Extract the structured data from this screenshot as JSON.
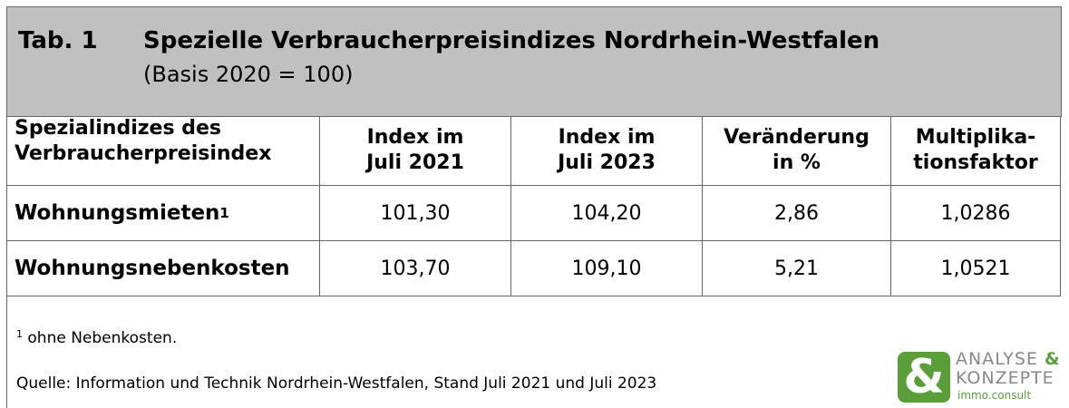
{
  "title": {
    "label": "Tab. 1",
    "text": "Spezielle Verbraucherpreisindizes Nordrhein-Westfalen",
    "subtitle": "(Basis 2020 = 100)"
  },
  "table": {
    "header": [
      [
        "Spezialindizes des",
        "Verbraucherpreisindex"
      ],
      [
        "Index im",
        "Juli 2021"
      ],
      [
        "Index im",
        "Juli 2023"
      ],
      [
        "Veränderung",
        "in %"
      ],
      [
        "Multiplika-",
        "tionsfaktor"
      ]
    ],
    "rows": [
      {
        "name": "Wohnungsmieten",
        "note": "1",
        "cells": [
          "101,30",
          "104,20",
          "2,86",
          "1,0286"
        ]
      },
      {
        "name": "Wohnungsnebenkosten",
        "cells": [
          "103,70",
          "109,10",
          "5,21",
          "1,0521"
        ]
      }
    ]
  },
  "footnote": {
    "mark": "1",
    "text": "ohne Nebenkosten."
  },
  "source": "Quelle: Information und Technik Nordrhein-Westfalen, Stand Juli 2021 und Juli 2023",
  "logo": {
    "symbol": "&",
    "line1": "ANALYSE",
    "amp": "&",
    "line2": "KONZEPTE",
    "line3": "immo.consult"
  }
}
